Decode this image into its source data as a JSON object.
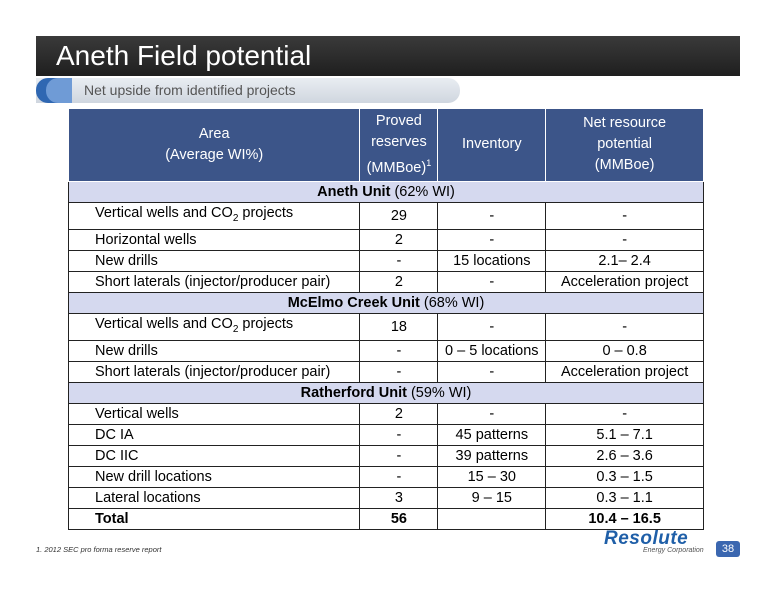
{
  "header": {
    "title": "Aneth Field potential",
    "subtitle": "Net upside from identified projects"
  },
  "table": {
    "headers": {
      "area_line1": "Area",
      "area_line2": "(Average WI%)",
      "proved_line1": "Proved",
      "proved_line2": "reserves",
      "proved_line3": "(MMBoe)",
      "proved_sup": "1",
      "inventory": "Inventory",
      "net_line1": "Net resource",
      "net_line2": "potential",
      "net_line3": "(MMBoe)"
    },
    "sections": {
      "aneth_name": "Aneth Unit",
      "aneth_wi": " (62% WI)",
      "mcelmo_name": "McElmo Creek Unit",
      "mcelmo_wi": " (68% WI)",
      "ratherford_name": "Ratherford Unit",
      "ratherford_wi": " (59% WI)"
    },
    "rows": [
      {
        "label_pre": "Vertical wells and CO",
        "label_sub": "2",
        "label_post": " projects",
        "proved": "29",
        "inventory": "-",
        "net": "-"
      },
      {
        "label": "Horizontal wells",
        "proved": "2",
        "inventory": "-",
        "net": "-"
      },
      {
        "label": "New drills",
        "proved": "-",
        "inventory": "15 locations",
        "net": "2.1– 2.4"
      },
      {
        "label": "Short laterals (injector/producer pair)",
        "proved": "2",
        "inventory": "-",
        "net": "Acceleration project"
      },
      {
        "label_pre": "Vertical wells and CO",
        "label_sub": "2",
        "label_post": " projects",
        "proved": "18",
        "inventory": "-",
        "net": "-"
      },
      {
        "label": "New drills",
        "proved": "-",
        "inventory": "0 – 5 locations",
        "net": "0 – 0.8"
      },
      {
        "label": "Short laterals (injector/producer pair)",
        "proved": "-",
        "inventory": "-",
        "net": "Acceleration project"
      },
      {
        "label": "Vertical wells",
        "proved": "2",
        "inventory": "-",
        "net": "-"
      },
      {
        "label": "DC IA",
        "proved": "-",
        "inventory": "45 patterns",
        "net": "5.1 – 7.1"
      },
      {
        "label": "DC IIC",
        "proved": "-",
        "inventory": "39 patterns",
        "net": "2.6 – 3.6"
      },
      {
        "label": "New drill locations",
        "proved": "-",
        "inventory": "15 – 30",
        "net": "0.3 – 1.5"
      },
      {
        "label": "Lateral locations",
        "proved": "3",
        "inventory": "9 – 15",
        "net": "0.3 – 1.1"
      }
    ],
    "total": {
      "label": "Total",
      "proved": "56",
      "inventory": "",
      "net": "10.4 – 16.5"
    }
  },
  "footer": {
    "footnote": "1.  2012 SEC pro forma reserve report",
    "logo": "Resolute",
    "logo_sub": "Energy Corporation",
    "page_number": "38"
  }
}
